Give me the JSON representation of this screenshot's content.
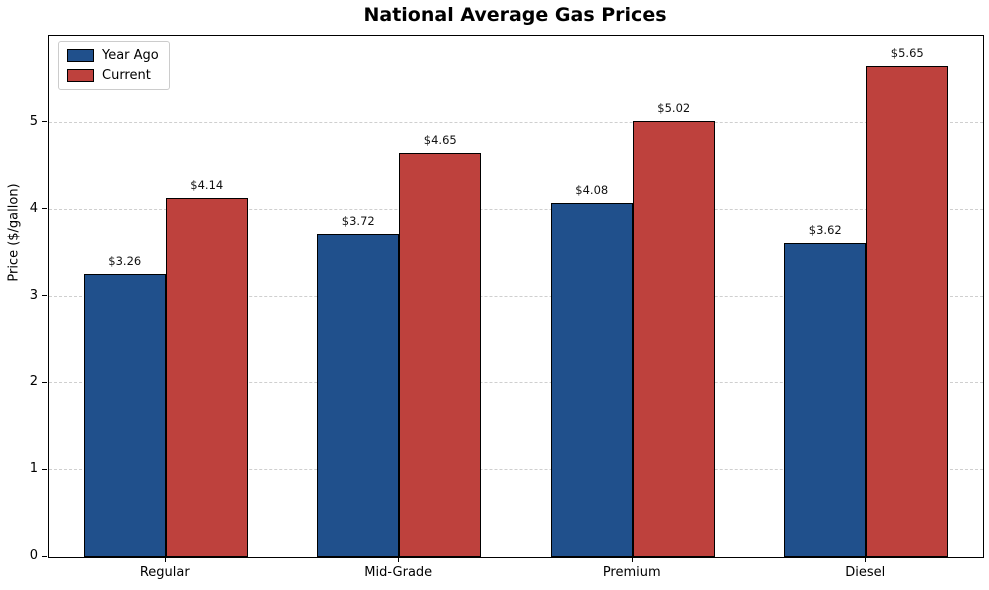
{
  "chart_data": {
    "type": "bar",
    "title": "National Average Gas Prices",
    "xlabel": "",
    "ylabel": "Price ($/gallon)",
    "categories": [
      "Regular",
      "Mid-Grade",
      "Premium",
      "Diesel"
    ],
    "series": [
      {
        "name": "Year Ago",
        "color": "#20508C",
        "values": [
          3.26,
          3.72,
          4.08,
          3.62
        ],
        "value_labels": [
          "$3.26",
          "$3.72",
          "$4.08",
          "$3.62"
        ]
      },
      {
        "name": "Current",
        "color": "#BE413D",
        "values": [
          4.14,
          4.65,
          5.02,
          5.65
        ],
        "value_labels": [
          "$4.14",
          "$4.65",
          "$5.02",
          "$5.65"
        ]
      }
    ],
    "ylim": [
      0,
      6
    ],
    "yticks": [
      0,
      1,
      2,
      3,
      4,
      5
    ],
    "grid": "horizontal-dashed",
    "gridline_color": "#cfcfcf",
    "bar_edge_color": "#000000",
    "legend_position": "upper-left",
    "background_color": "#ffffff"
  }
}
